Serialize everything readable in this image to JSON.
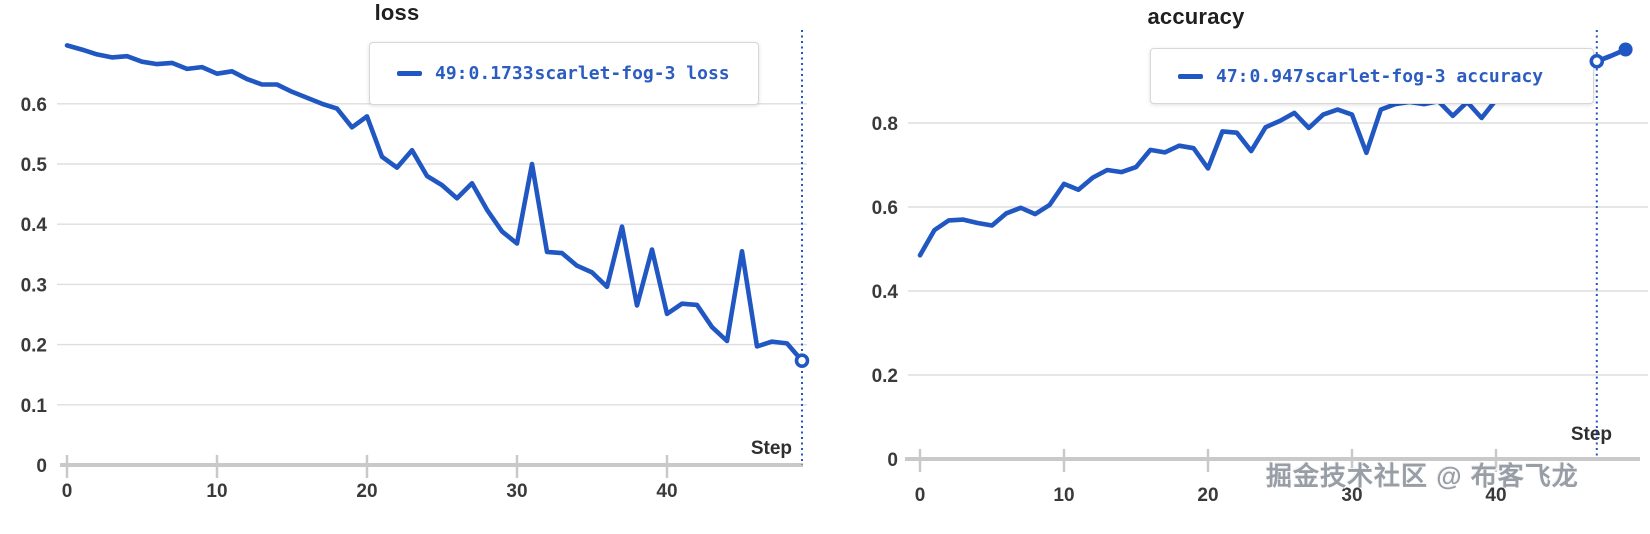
{
  "watermark": "掘金技术社区 @ 布客飞龙",
  "colors": {
    "line": "#2157c2",
    "grid": "#dedede",
    "axis": "#c9c9c9",
    "tick_label": "#3a3a3a",
    "title": "#1f1f1f",
    "tooltip_text": "#2b5cc0",
    "cursor": "#2157c2"
  },
  "chart_data": [
    {
      "type": "line",
      "title": "loss",
      "series_name": "scarlet-fog-3",
      "xlabel": "Step",
      "legend_position": "tooltip",
      "grid": true,
      "x_ticks": [
        0,
        10,
        20,
        30,
        40
      ],
      "y_ticks": [
        0,
        0.1,
        0.2,
        0.3,
        0.4,
        0.5,
        0.6
      ],
      "xlim": [
        0,
        49
      ],
      "ylim": [
        0,
        0.72
      ],
      "cursor_step": 49,
      "cursor_value": 0.1733,
      "tooltip": {
        "step_label": "49:",
        "value": "0.1733",
        "series": "scarlet-fog-3 loss"
      },
      "x": [
        0,
        1,
        2,
        3,
        4,
        5,
        6,
        7,
        8,
        9,
        10,
        11,
        12,
        13,
        14,
        15,
        16,
        17,
        18,
        19,
        20,
        21,
        22,
        23,
        24,
        25,
        26,
        27,
        28,
        29,
        30,
        31,
        32,
        33,
        34,
        35,
        36,
        37,
        38,
        39,
        40,
        41,
        42,
        43,
        44,
        45,
        46,
        47,
        48,
        49
      ],
      "values": [
        0.697,
        0.69,
        0.682,
        0.677,
        0.679,
        0.67,
        0.666,
        0.668,
        0.658,
        0.661,
        0.65,
        0.654,
        0.641,
        0.632,
        0.632,
        0.62,
        0.61,
        0.6,
        0.592,
        0.561,
        0.579,
        0.512,
        0.494,
        0.523,
        0.48,
        0.465,
        0.443,
        0.468,
        0.424,
        0.388,
        0.368,
        0.5,
        0.354,
        0.352,
        0.331,
        0.32,
        0.296,
        0.396,
        0.265,
        0.358,
        0.251,
        0.268,
        0.266,
        0.229,
        0.206,
        0.355,
        0.197,
        0.205,
        0.202,
        0.1733
      ]
    },
    {
      "type": "line",
      "title": "accuracy",
      "series_name": "scarlet-fog-3",
      "xlabel": "Step",
      "legend_position": "tooltip",
      "grid": true,
      "x_ticks": [
        0,
        10,
        20,
        30,
        40
      ],
      "y_ticks": [
        0,
        0.2,
        0.4,
        0.6,
        0.8
      ],
      "xlim": [
        0,
        49
      ],
      "ylim": [
        0,
        1.0
      ],
      "cursor_step": 47,
      "cursor_value": 0.947,
      "tooltip": {
        "step_label": "47:",
        "value": "0.947",
        "series": "scarlet-fog-3 accuracy"
      },
      "x": [
        0,
        1,
        2,
        3,
        4,
        5,
        6,
        7,
        8,
        9,
        10,
        11,
        12,
        13,
        14,
        15,
        16,
        17,
        18,
        19,
        20,
        21,
        22,
        23,
        24,
        25,
        26,
        27,
        28,
        29,
        30,
        31,
        32,
        33,
        34,
        35,
        36,
        37,
        38,
        39,
        40,
        41,
        42,
        43,
        44,
        45,
        46,
        47,
        48,
        49
      ],
      "values": [
        0.485,
        0.545,
        0.568,
        0.57,
        0.562,
        0.556,
        0.585,
        0.598,
        0.583,
        0.605,
        0.655,
        0.641,
        0.67,
        0.688,
        0.683,
        0.695,
        0.736,
        0.73,
        0.746,
        0.74,
        0.692,
        0.78,
        0.777,
        0.733,
        0.79,
        0.805,
        0.824,
        0.788,
        0.82,
        0.832,
        0.82,
        0.729,
        0.832,
        0.845,
        0.85,
        0.845,
        0.852,
        0.817,
        0.85,
        0.812,
        0.855,
        0.86,
        0.865,
        0.858,
        0.87,
        0.9,
        0.958,
        0.947,
        0.96,
        0.975
      ]
    }
  ]
}
